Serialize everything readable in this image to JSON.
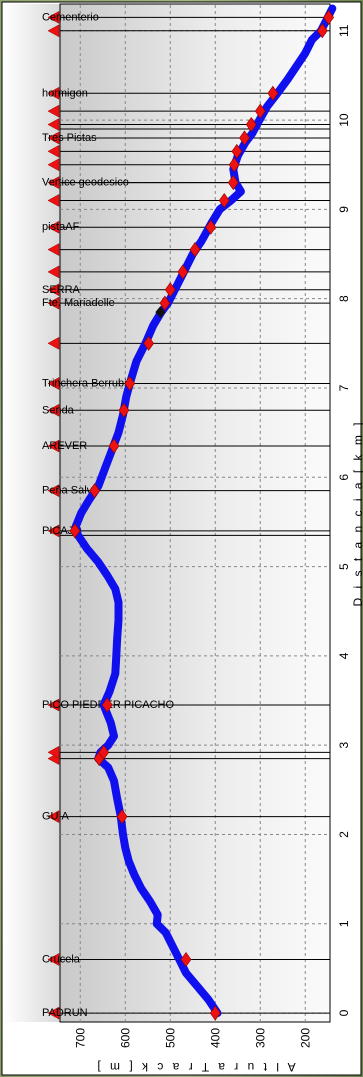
{
  "chart_data": {
    "type": "line",
    "xlabel": "D i s t a n c i a  [ k m ]",
    "ylabel": "A l t u r a   T r a c k   [ m ]",
    "xlim": [
      -0.1,
      11.3
    ],
    "ylim": [
      145,
      745
    ],
    "x_ticks": [
      0,
      1,
      2,
      3,
      4,
      5,
      6,
      7,
      8,
      9,
      10,
      11
    ],
    "y_ticks": [
      200,
      300,
      400,
      500,
      600,
      700
    ],
    "grid": true,
    "colors": {
      "track": "#1010ee",
      "marker": "#ee1111",
      "line": "#000000",
      "current": "#111111"
    },
    "series": [
      {
        "x": [
          0,
          0.15,
          0.3,
          0.45,
          0.6,
          0.75,
          0.9,
          1.0,
          1.1,
          1.25,
          1.4,
          1.55,
          1.7,
          1.85,
          2.0,
          2.2,
          2.4,
          2.6,
          2.75,
          2.85,
          2.92,
          3.0,
          3.1,
          3.25,
          3.45,
          3.6,
          3.8,
          4.0,
          4.2,
          4.4,
          4.6,
          4.75,
          4.9,
          5.05,
          5.2,
          5.35,
          5.45,
          5.6,
          5.75,
          5.9,
          6.1,
          6.3,
          6.5,
          6.7,
          6.9,
          7.05,
          7.3,
          7.5,
          7.7,
          7.85,
          7.95,
          8.1,
          8.3,
          8.5,
          8.65,
          8.85,
          9.0,
          9.1,
          9.2,
          9.3,
          9.45,
          9.6,
          9.75,
          9.85,
          10.0,
          10.15,
          10.3,
          10.45,
          10.6,
          10.75,
          10.9,
          11.0,
          11.15,
          11.25
        ],
        "y": [
          395,
          415,
          440,
          465,
          480,
          495,
          510,
          530,
          528,
          545,
          565,
          580,
          592,
          600,
          605,
          610,
          618,
          625,
          638,
          660,
          655,
          638,
          625,
          632,
          648,
          635,
          622,
          620,
          618,
          615,
          615,
          622,
          640,
          660,
          685,
          705,
          710,
          698,
          680,
          660,
          645,
          630,
          615,
          605,
          598,
          590,
          575,
          555,
          538,
          520,
          505,
          490,
          470,
          450,
          430,
          408,
          390,
          365,
          343,
          355,
          360,
          350,
          333,
          318,
          302,
          285,
          262,
          240,
          220,
          200,
          185,
          165,
          150,
          140
        ],
        "current_marker": {
          "x": 7.85,
          "y": 522
        }
      }
    ],
    "waypoints": [
      {
        "x": 0.0,
        "y": 400,
        "label": "PADRUN"
      },
      {
        "x": 0.6,
        "y": 465,
        "label": "Crucela"
      },
      {
        "x": 2.2,
        "y": 607,
        "label": "GUIA"
      },
      {
        "x": 2.85,
        "y": 658,
        "label": ""
      },
      {
        "x": 2.92,
        "y": 648,
        "label": ""
      },
      {
        "x": 3.45,
        "y": 640,
        "label": "PICO PIEDRER PICACHO"
      },
      {
        "x": 5.4,
        "y": 712,
        "label": "PICAJO"
      },
      {
        "x": 5.85,
        "y": 668,
        "label": "Peña Salve"
      },
      {
        "x": 6.35,
        "y": 625,
        "label": "AREVER"
      },
      {
        "x": 6.75,
        "y": 603,
        "label": "Senda"
      },
      {
        "x": 7.05,
        "y": 590,
        "label": "Trinchera Berrubia"
      },
      {
        "x": 7.5,
        "y": 548,
        "label": ""
      },
      {
        "x": 7.95,
        "y": 512,
        "label": "Fte. Mariadelle"
      },
      {
        "x": 8.1,
        "y": 500,
        "label": "SERRA"
      },
      {
        "x": 8.3,
        "y": 472,
        "label": ""
      },
      {
        "x": 8.55,
        "y": 445,
        "label": ""
      },
      {
        "x": 8.8,
        "y": 410,
        "label": "pistaAF"
      },
      {
        "x": 9.1,
        "y": 380,
        "label": ""
      },
      {
        "x": 9.3,
        "y": 360,
        "label": "Vertice geodesico"
      },
      {
        "x": 9.5,
        "y": 358,
        "label": ""
      },
      {
        "x": 9.65,
        "y": 352,
        "label": ""
      },
      {
        "x": 9.8,
        "y": 335,
        "label": "Tres Pistas"
      },
      {
        "x": 9.95,
        "y": 320,
        "label": ""
      },
      {
        "x": 10.1,
        "y": 300,
        "label": ""
      },
      {
        "x": 10.3,
        "y": 272,
        "label": "hormigon"
      },
      {
        "x": 11.0,
        "y": 162,
        "label": ""
      },
      {
        "x": 11.15,
        "y": 148,
        "label": "Cementerio"
      }
    ],
    "extra_vlines": [
      5.35,
      9.3,
      9.9
    ]
  }
}
